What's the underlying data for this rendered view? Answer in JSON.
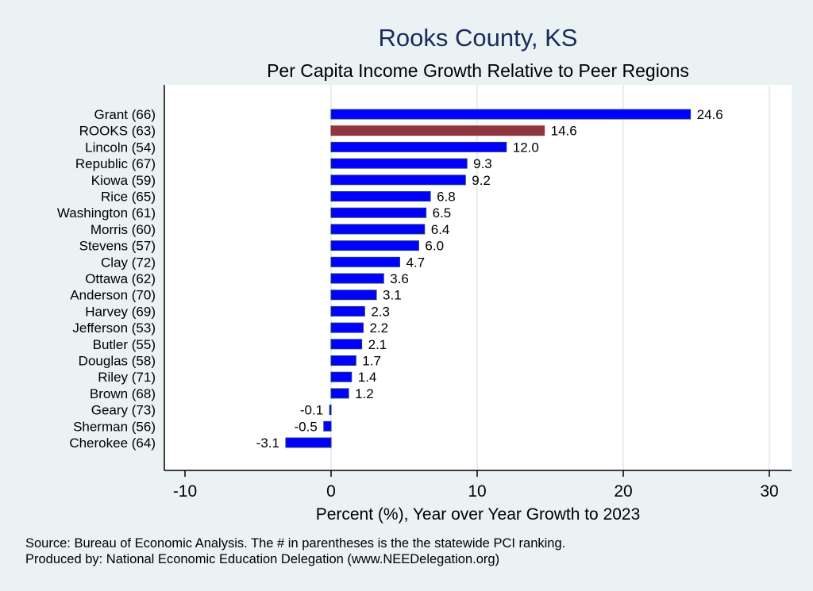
{
  "chart_data": {
    "type": "bar",
    "orientation": "horizontal",
    "title": "Rooks County, KS",
    "subtitle": "Per Capita Income Growth Relative to Peer Regions",
    "xlabel": "Percent (%), Year over Year Growth to 2023",
    "ylabel": "",
    "xlim": [
      -11.4,
      31.5
    ],
    "xticks": [
      -10,
      0,
      10,
      20,
      30
    ],
    "grid": "vertical",
    "categories": [
      "Grant (66)",
      "ROOKS (63)",
      "Lincoln (54)",
      "Republic (67)",
      "Kiowa (59)",
      "Rice (65)",
      "Washington (61)",
      "Morris (60)",
      "Stevens (57)",
      "Clay (72)",
      "Ottawa (62)",
      "Anderson (70)",
      "Harvey (69)",
      "Jefferson (53)",
      "Butler (55)",
      "Douglas (58)",
      "Riley (71)",
      "Brown (68)",
      "Geary (73)",
      "Sherman (56)",
      "Cherokee (64)"
    ],
    "values": [
      24.6,
      14.6,
      12.0,
      9.3,
      9.2,
      6.8,
      6.5,
      6.4,
      6.0,
      4.7,
      3.6,
      3.1,
      2.3,
      2.2,
      2.1,
      1.7,
      1.4,
      1.2,
      -0.1,
      -0.5,
      -3.1
    ],
    "labels": [
      "24.6",
      "14.6",
      "12.0",
      "9.3",
      "9.2",
      "6.8",
      "6.5",
      "6.4",
      "6.0",
      "4.7",
      "3.6",
      "3.1",
      "2.3",
      "2.2",
      "2.1",
      "1.7",
      "1.4",
      "1.2",
      "-0.1",
      "-0.5",
      "-3.1"
    ],
    "highlight": "ROOKS (63)",
    "colors": {
      "bar": "#0000ff",
      "highlight": "#8f353d",
      "title": "#1a2b5a",
      "background": "#eaf2f3",
      "plot": "#ffffff"
    }
  },
  "notes": [
    "Source: Bureau of Economic Analysis. The # in parentheses is the the statewide PCI ranking.",
    "Produced by: National Economic Education Delegation (www.NEEDelegation.org)"
  ]
}
